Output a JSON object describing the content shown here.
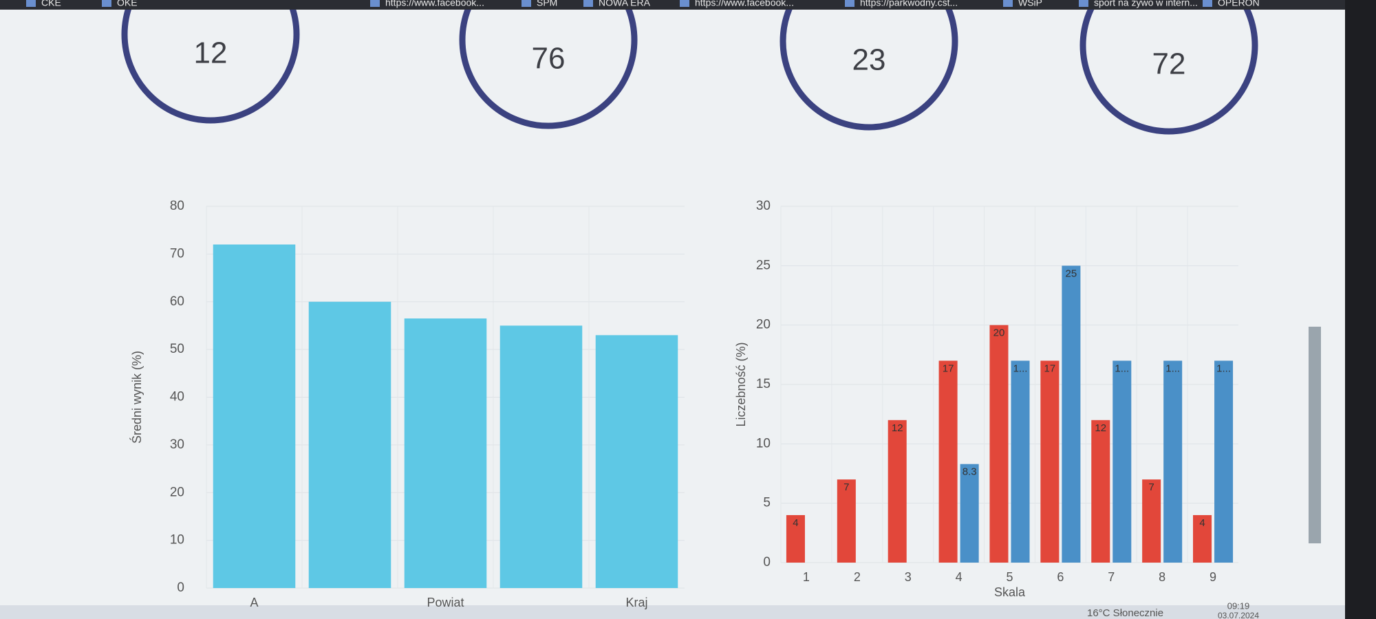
{
  "bookmarks": [
    "CKE",
    "OKE",
    "https://www.facebook...",
    "SPM",
    "NOWA ERA",
    "https://www.facebook...",
    "https://parkwodny.cst...",
    "WSiP",
    "sport na zywo w intern...",
    "OPERON"
  ],
  "stats": [
    12,
    76,
    23,
    72
  ],
  "chart_data": [
    {
      "type": "bar",
      "y_label": "Średni wynik (%)",
      "categories": [
        "A",
        null,
        "Powiat",
        null,
        "Kraj"
      ],
      "values": [
        72,
        60,
        56.5,
        55,
        53
      ],
      "color": "#5ec8e5",
      "ylim": [
        0,
        80
      ],
      "yticks": [
        0,
        10,
        20,
        30,
        40,
        50,
        60,
        70,
        80
      ],
      "grid": true
    },
    {
      "type": "bar",
      "y_label": "Liczebność (%)",
      "x_label": "Skala",
      "categories": [
        "1",
        "2",
        "3",
        "4",
        "5",
        "6",
        "7",
        "8",
        "9"
      ],
      "series": [
        {
          "color": "#e2473a",
          "values": [
            4,
            7,
            12,
            17,
            20,
            17,
            12,
            7,
            4
          ]
        },
        {
          "color": "#4a90c8",
          "values": [
            null,
            null,
            null,
            8.3,
            17,
            25,
            17,
            17,
            17
          ],
          "value_labels": [
            null,
            null,
            null,
            "8.3",
            "1...",
            "25",
            "1...",
            "1...",
            "1..."
          ]
        }
      ],
      "ylim": [
        0,
        30
      ],
      "yticks": [
        0,
        5,
        10,
        15,
        20,
        25,
        30
      ],
      "grid": true
    }
  ],
  "taskbar": {
    "weather": "16°C  Słonecznie",
    "time": "09:19",
    "date": "03.07.2024"
  }
}
